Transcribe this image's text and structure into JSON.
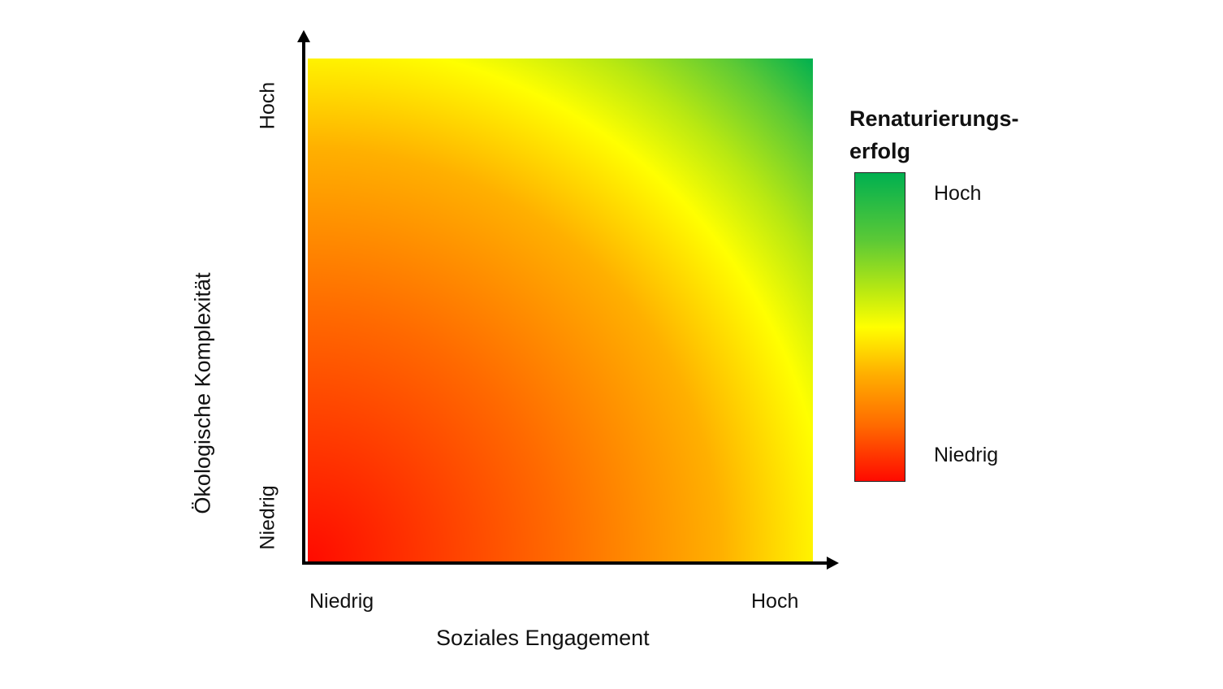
{
  "y_axis": {
    "label": "Ökologische Komplexität",
    "high_label": "Hoch",
    "low_label": "Niedrig"
  },
  "x_axis": {
    "label": "Soziales Engagement",
    "low_label": "Niedrig",
    "high_label": "Hoch"
  },
  "legend": {
    "title_line1": "Renaturierungs-",
    "title_line2": "erfolg",
    "high_label": "Hoch",
    "low_label": "Niedrig"
  },
  "colors": {
    "low": "#ff0a00",
    "mid": "#ffff00",
    "high": "#00b050",
    "axis": "#000000"
  }
}
